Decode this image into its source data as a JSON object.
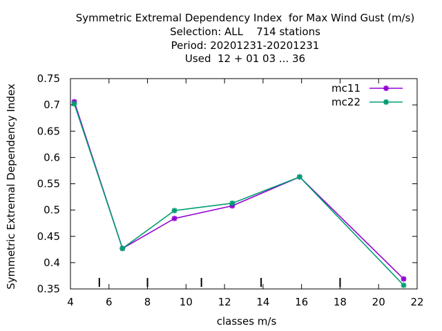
{
  "chart_data": {
    "type": "line",
    "title_lines": [
      "Symmetric Extremal Dependency Index  for Max Wind Gust (m/s)",
      "Selection: ALL    714 stations",
      "Period: 20201231-20201231",
      "Used  12 + 01 03 ... 36"
    ],
    "xlabel": "classes m/s",
    "ylabel": "Symmetric Extremal Dependency Index",
    "xlim": [
      4,
      22
    ],
    "ylim": [
      0.35,
      0.75
    ],
    "xticks": [
      4,
      6,
      8,
      10,
      12,
      14,
      16,
      18,
      20,
      22
    ],
    "yticks": [
      0.35,
      0.4,
      0.45,
      0.5,
      0.55,
      0.6,
      0.65,
      0.7,
      0.75
    ],
    "ytick_labels": [
      "0.35",
      "0.4",
      "0.45",
      "0.5",
      "0.55",
      "0.6",
      "0.65",
      "0.7",
      "0.75"
    ],
    "class_boundaries": [
      5.5,
      8.0,
      10.8,
      13.9,
      18.0
    ],
    "legend_position": "top-right",
    "series": [
      {
        "name": "mc11",
        "color": "#9400d3",
        "x": [
          4.2,
          6.7,
          9.4,
          12.4,
          15.9,
          21.3
        ],
        "y": [
          0.706,
          0.427,
          0.484,
          0.508,
          0.563,
          0.369
        ]
      },
      {
        "name": "mc22",
        "color": "#009e73",
        "x": [
          4.2,
          6.7,
          9.4,
          12.4,
          15.9,
          21.3
        ],
        "y": [
          0.702,
          0.427,
          0.499,
          0.513,
          0.563,
          0.357
        ]
      }
    ]
  }
}
